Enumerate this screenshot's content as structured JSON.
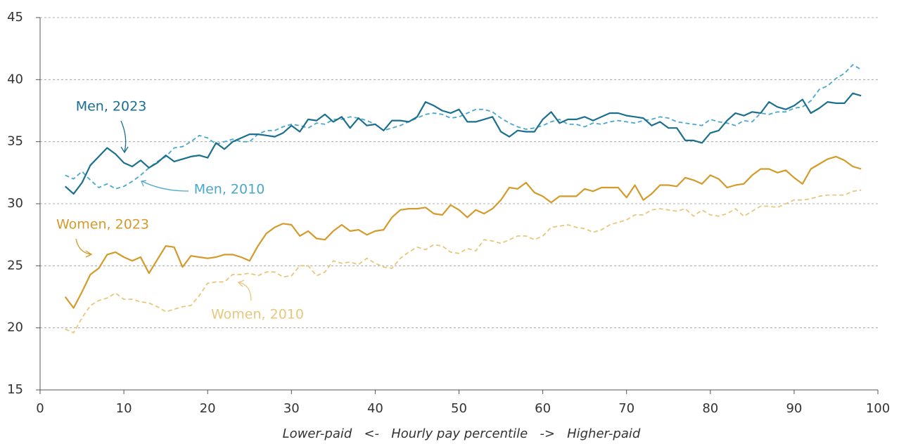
{
  "chart_data": {
    "type": "line",
    "x_label": "Lower-paid   <-   Hourly pay percentile   ->   Higher-paid",
    "x": [
      3,
      4,
      5,
      6,
      7,
      8,
      9,
      10,
      11,
      12,
      13,
      14,
      15,
      16,
      17,
      18,
      19,
      20,
      21,
      22,
      23,
      24,
      25,
      26,
      27,
      28,
      29,
      30,
      31,
      32,
      33,
      34,
      35,
      36,
      37,
      38,
      39,
      40,
      41,
      42,
      43,
      44,
      45,
      46,
      47,
      48,
      49,
      50,
      51,
      52,
      53,
      54,
      55,
      56,
      57,
      58,
      59,
      60,
      61,
      62,
      63,
      64,
      65,
      66,
      67,
      68,
      69,
      70,
      71,
      72,
      73,
      74,
      75,
      76,
      77,
      78,
      79,
      80,
      81,
      82,
      83,
      84,
      85,
      86,
      87,
      88,
      89,
      90,
      91,
      92,
      93,
      94,
      95,
      96,
      97,
      98
    ],
    "xlim": [
      0,
      100
    ],
    "xticks": [
      0,
      10,
      20,
      30,
      40,
      50,
      60,
      70,
      80,
      90,
      100
    ],
    "ylim": [
      15,
      45
    ],
    "yticks": [
      15,
      20,
      25,
      30,
      35,
      40,
      45
    ],
    "grid": true,
    "series": [
      {
        "name": "Men, 2023",
        "color": "#1b6f8f",
        "dashed": false,
        "values": [
          31.4,
          30.8,
          31.7,
          33.1,
          33.8,
          34.5,
          34.0,
          33.3,
          33.0,
          33.5,
          32.9,
          33.3,
          33.9,
          33.4,
          33.6,
          33.8,
          33.9,
          33.7,
          34.9,
          34.4,
          35.0,
          35.3,
          35.6,
          35.6,
          35.5,
          35.4,
          35.7,
          36.3,
          35.8,
          36.8,
          36.7,
          37.2,
          36.6,
          37.0,
          36.1,
          36.9,
          36.3,
          36.4,
          35.9,
          36.7,
          36.7,
          36.6,
          37.0,
          38.2,
          37.9,
          37.5,
          37.3,
          37.6,
          36.6,
          36.6,
          36.8,
          37.0,
          35.8,
          35.4,
          35.9,
          35.8,
          35.8,
          36.8,
          37.4,
          36.5,
          36.8,
          36.8,
          37.0,
          36.7,
          37.0,
          37.3,
          37.3,
          37.1,
          37.0,
          36.9,
          36.3,
          36.6,
          36.1,
          36.1,
          35.1,
          35.1,
          34.9,
          35.7,
          35.9,
          36.7,
          37.3,
          37.1,
          37.4,
          37.3,
          38.2,
          37.8,
          37.6,
          37.9,
          38.4,
          37.3,
          37.7,
          38.2,
          38.1,
          38.1,
          38.9,
          38.7
        ]
      },
      {
        "name": "Men, 2010",
        "color": "#4aa8cd",
        "dashed": true,
        "values": [
          32.3,
          32.0,
          32.6,
          31.9,
          31.3,
          31.6,
          31.2,
          31.4,
          31.8,
          32.3,
          32.9,
          33.4,
          33.8,
          34.5,
          34.6,
          35.0,
          35.5,
          35.3,
          34.8,
          35.0,
          35.2,
          35.0,
          35.0,
          35.6,
          35.9,
          35.9,
          36.2,
          36.4,
          36.3,
          36.1,
          36.5,
          36.4,
          36.8,
          36.8,
          37.0,
          36.9,
          36.7,
          36.4,
          35.9,
          36.1,
          36.3,
          36.6,
          36.9,
          37.2,
          37.3,
          37.2,
          36.9,
          37.0,
          37.3,
          37.6,
          37.6,
          37.4,
          36.9,
          36.5,
          36.2,
          36.0,
          36.1,
          36.3,
          36.6,
          36.8,
          36.4,
          36.4,
          36.2,
          36.5,
          36.4,
          36.6,
          36.7,
          36.6,
          36.5,
          36.7,
          36.8,
          37.0,
          36.9,
          36.6,
          36.5,
          36.4,
          36.3,
          36.8,
          36.6,
          36.5,
          36.3,
          36.7,
          36.6,
          37.3,
          37.2,
          37.4,
          37.4,
          37.7,
          37.8,
          38.3,
          39.2,
          39.5,
          40.1,
          40.5,
          41.2,
          40.8
        ]
      },
      {
        "name": "Women, 2023",
        "color": "#d49a2a",
        "dashed": false,
        "values": [
          22.5,
          21.6,
          22.9,
          24.3,
          24.8,
          25.9,
          26.1,
          25.7,
          25.4,
          25.7,
          24.4,
          25.5,
          26.6,
          26.5,
          24.9,
          25.8,
          25.7,
          25.6,
          25.7,
          25.9,
          25.9,
          25.7,
          25.4,
          26.6,
          27.6,
          28.1,
          28.4,
          28.3,
          27.4,
          27.8,
          27.2,
          27.1,
          27.8,
          28.3,
          27.8,
          27.9,
          27.5,
          27.8,
          27.9,
          28.9,
          29.5,
          29.6,
          29.6,
          29.7,
          29.2,
          29.1,
          29.9,
          29.5,
          28.9,
          29.5,
          29.2,
          29.6,
          30.3,
          31.3,
          31.2,
          31.7,
          30.9,
          30.6,
          30.1,
          30.6,
          30.6,
          30.6,
          31.2,
          31.0,
          31.3,
          31.3,
          31.3,
          30.5,
          31.5,
          30.3,
          30.8,
          31.5,
          31.5,
          31.4,
          32.1,
          31.9,
          31.6,
          32.3,
          32.0,
          31.3,
          31.5,
          31.6,
          32.3,
          32.8,
          32.8,
          32.5,
          32.7,
          32.1,
          31.6,
          32.8,
          33.2,
          33.6,
          33.8,
          33.5,
          33.0,
          32.8
        ]
      },
      {
        "name": "Women, 2010",
        "color": "#e8c77c",
        "dashed": true,
        "values": [
          19.9,
          19.6,
          20.8,
          21.8,
          22.2,
          22.4,
          22.8,
          22.3,
          22.3,
          22.1,
          22.0,
          21.7,
          21.3,
          21.5,
          21.7,
          21.8,
          22.6,
          23.6,
          23.7,
          23.7,
          24.3,
          24.3,
          24.4,
          24.2,
          24.5,
          24.5,
          24.1,
          24.2,
          25.0,
          25.0,
          24.2,
          24.5,
          25.4,
          25.2,
          25.3,
          25.1,
          25.6,
          25.2,
          24.9,
          24.8,
          25.6,
          26.1,
          26.5,
          26.3,
          26.7,
          26.6,
          26.1,
          26.0,
          26.4,
          26.2,
          27.1,
          27.0,
          26.8,
          27.1,
          27.4,
          27.4,
          27.1,
          27.4,
          28.1,
          28.2,
          28.3,
          28.1,
          28.0,
          27.7,
          27.9,
          28.3,
          28.5,
          28.7,
          29.1,
          29.1,
          29.5,
          29.6,
          29.5,
          29.4,
          29.6,
          29.0,
          29.5,
          29.1,
          29.0,
          29.2,
          29.6,
          29.0,
          29.4,
          29.8,
          29.8,
          29.7,
          30.0,
          30.3,
          30.3,
          30.4,
          30.6,
          30.7,
          30.7,
          30.7,
          31.0,
          31.1
        ]
      }
    ]
  }
}
